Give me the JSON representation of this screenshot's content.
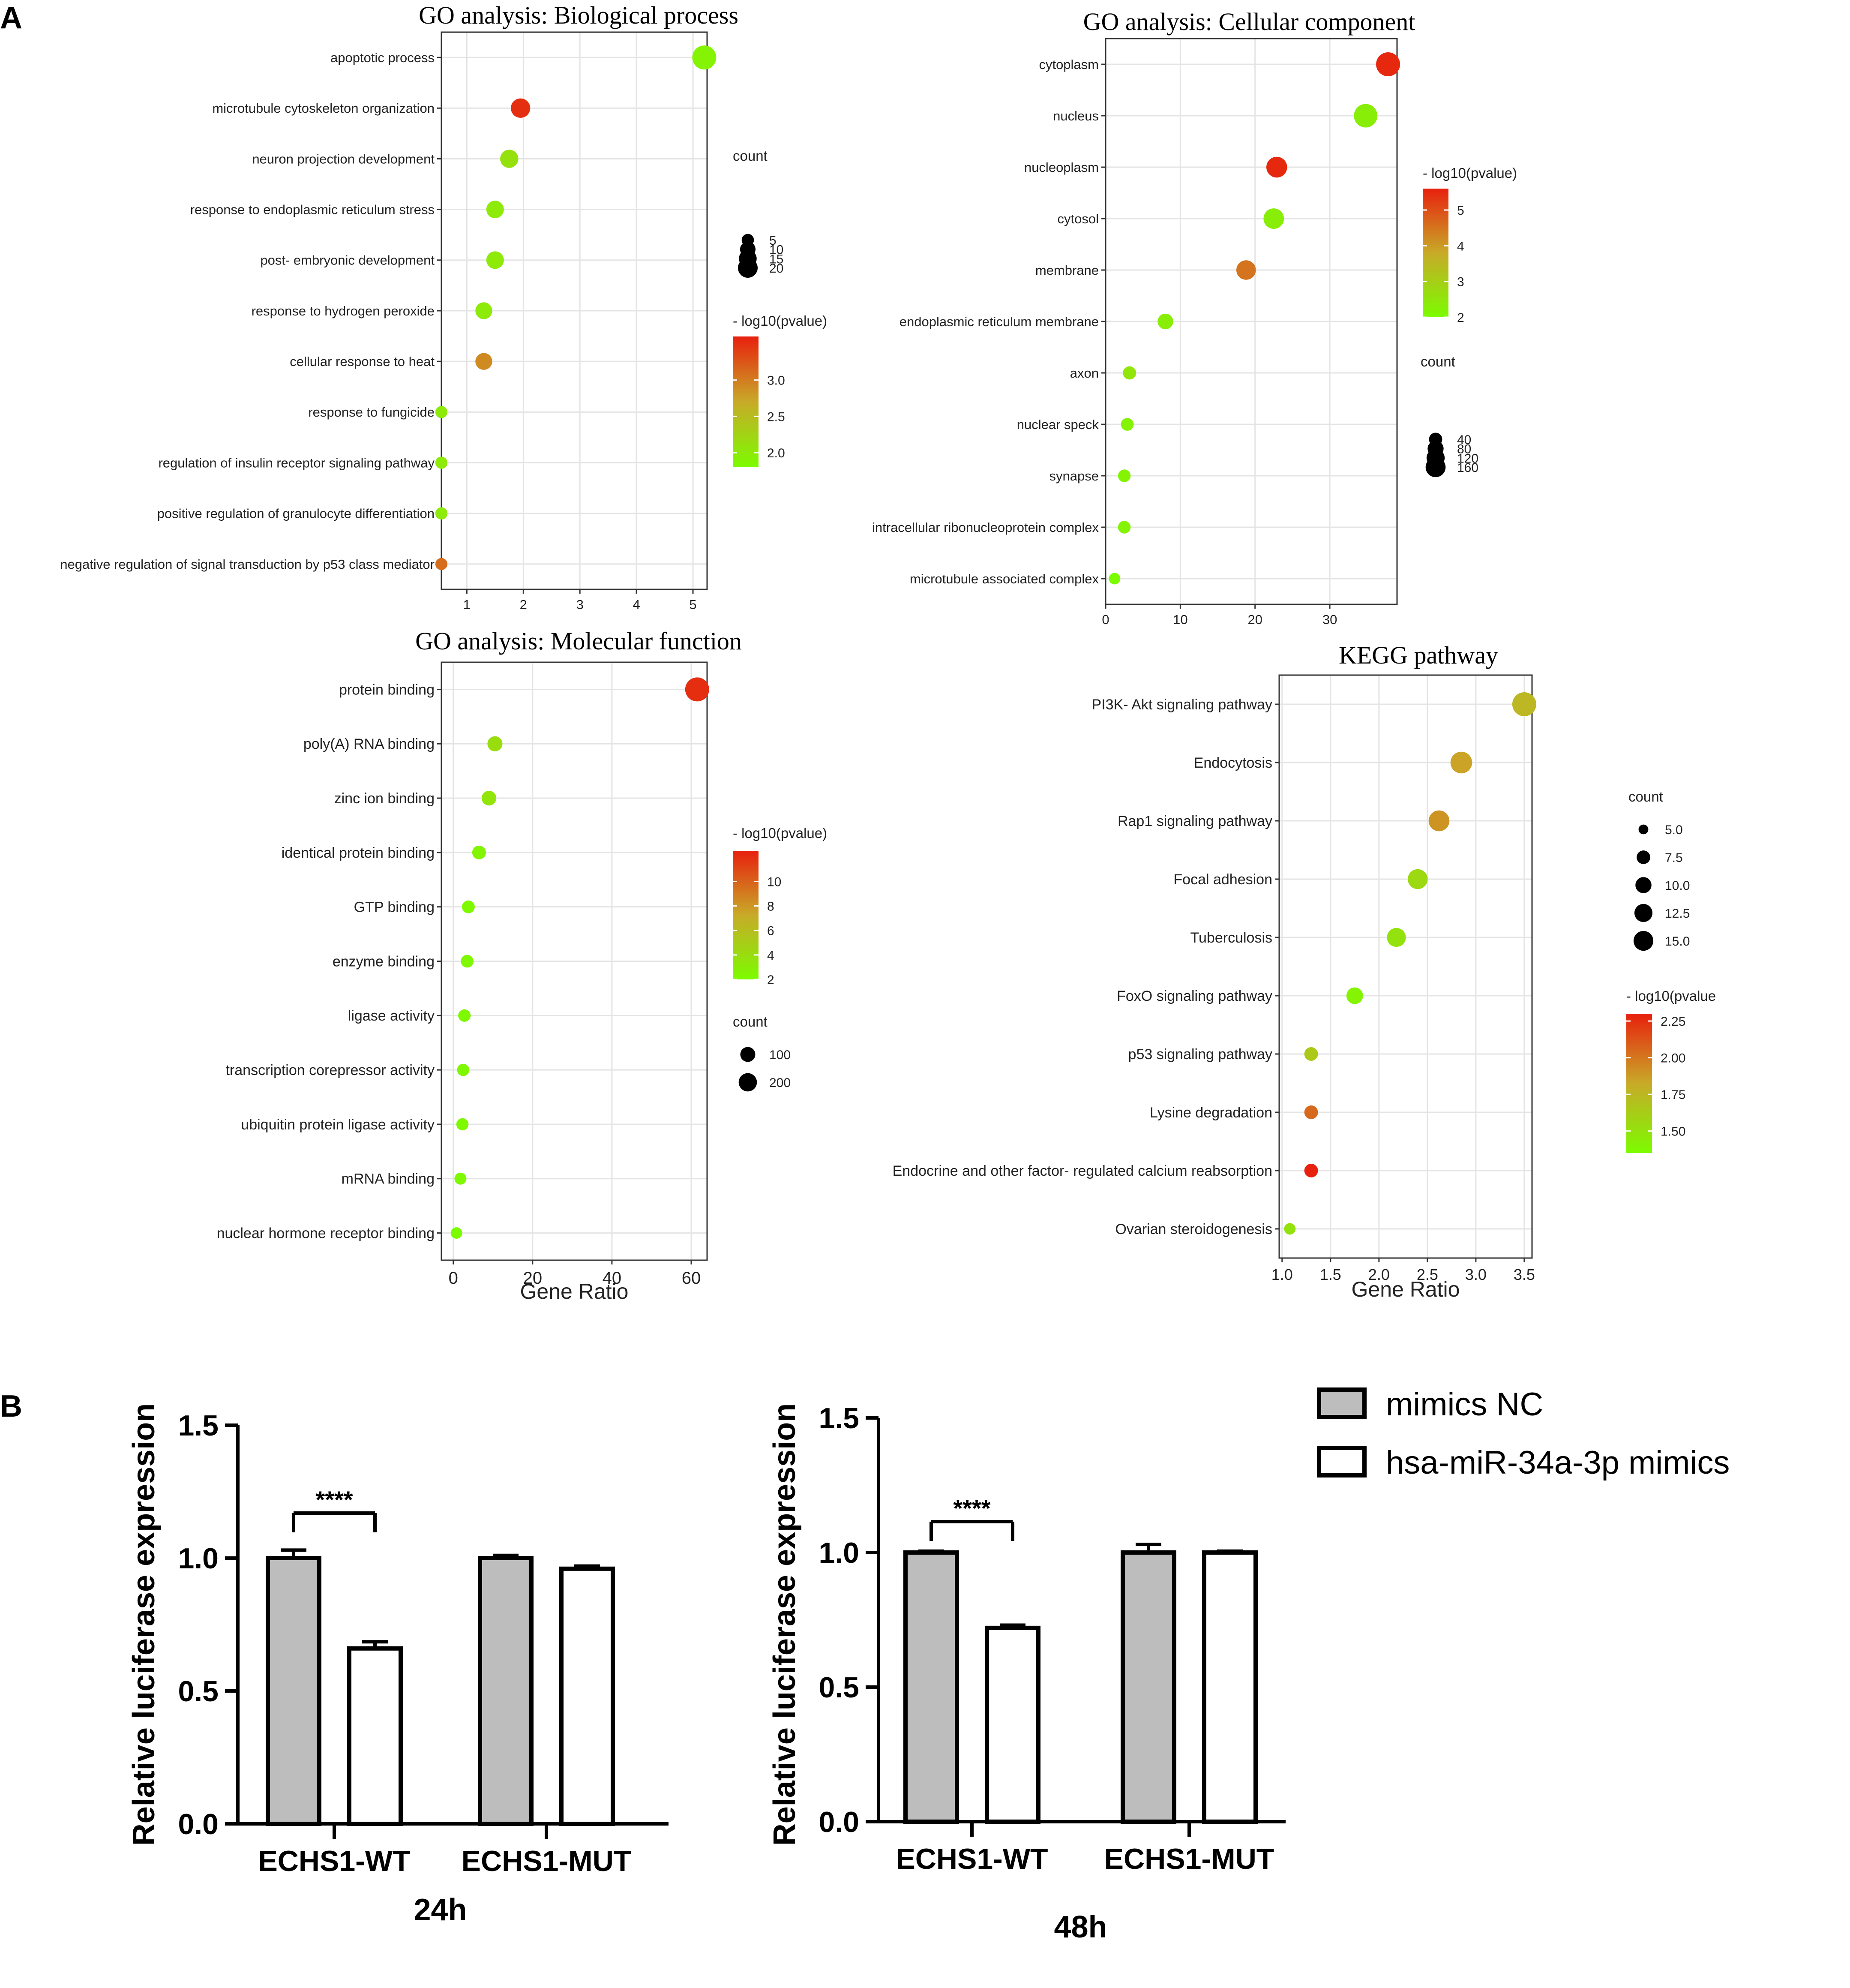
{
  "panel_labels": {
    "a": "A",
    "b": "B"
  },
  "colors": {
    "low": "#7CFC00",
    "mid": "#C8AA28",
    "high": "#E8200E",
    "grid": "#e4e4e4",
    "bar_gray": "#bdbdbd"
  },
  "chart_data": [
    {
      "id": "bp",
      "type": "scatter",
      "title": "GO analysis: Biological process",
      "xlabel": "",
      "xlim": [
        0.55,
        5.25
      ],
      "xticks": [
        1,
        2,
        3,
        4,
        5
      ],
      "terms": [
        "apoptotic process",
        "microtubule cytoskeleton organization",
        "neuron projection development",
        "response to endoplasmic reticulum stress",
        "post- embryonic development",
        "response to hydrogen peroxide",
        "cellular response to heat",
        "response to fungicide",
        "regulation of insulin receptor signaling pathway",
        "positive regulation of granulocyte differentiation",
        "negative regulation of signal transduction by p53 class mediator"
      ],
      "gene_ratio": [
        5.2,
        1.95,
        1.75,
        1.5,
        1.5,
        1.3,
        1.3,
        0.55,
        0.55,
        0.55,
        0.55
      ],
      "count": [
        22,
        12,
        10,
        9,
        9,
        8,
        8,
        3,
        3,
        3,
        3
      ],
      "neg_log10_p": [
        1.9,
        3.5,
        2.1,
        2.0,
        2.0,
        2.0,
        2.9,
        2.0,
        2.0,
        2.0,
        3.1
      ],
      "color_range": [
        1.8,
        3.6
      ],
      "size_legend": {
        "title": "count",
        "values": [
          5,
          10,
          15,
          20
        ],
        "labels": [
          "5",
          "10",
          "15",
          "20"
        ]
      },
      "color_legend": {
        "title": "- log10(pvalue)",
        "ticks": [
          3.0,
          2.5,
          2.0
        ],
        "labels": [
          "3.0",
          "2.5",
          "2.0"
        ]
      }
    },
    {
      "id": "cc",
      "type": "scatter",
      "title": "GO analysis: Cellular component",
      "xlabel": "",
      "xlim": [
        0,
        39
      ],
      "xticks": [
        0,
        10,
        20,
        30
      ],
      "terms": [
        "cytoplasm",
        "nucleus",
        "nucleoplasm",
        "cytosol",
        "membrane",
        "endoplasmic reticulum membrane",
        "axon",
        "nuclear speck",
        "synapse",
        "intracellular ribonucleoprotein complex",
        "microtubule associated complex"
      ],
      "gene_ratio": [
        37.8,
        34.8,
        22.9,
        22.5,
        18.8,
        8.0,
        3.2,
        2.9,
        2.5,
        2.5,
        1.2
      ],
      "count": [
        170,
        160,
        110,
        105,
        90,
        40,
        18,
        15,
        14,
        14,
        7
      ],
      "neg_log10_p": [
        5.5,
        2.3,
        5.5,
        2.3,
        4.5,
        2.3,
        2.5,
        2.2,
        2.2,
        2.2,
        2.0
      ],
      "color_range": [
        2,
        5.6
      ],
      "size_legend": {
        "title": "count",
        "values": [
          40,
          80,
          120,
          160
        ],
        "labels": [
          "40",
          "80",
          "120",
          "160"
        ]
      },
      "color_legend": {
        "title": "- log10(pvalue)",
        "ticks": [
          5,
          4,
          3,
          2
        ],
        "labels": [
          "5",
          "4",
          "3",
          "2"
        ]
      }
    },
    {
      "id": "mf",
      "type": "scatter",
      "title": "GO analysis: Molecular function",
      "xlabel": "Gene Ratio",
      "xlim": [
        -3,
        64
      ],
      "xticks": [
        0,
        20,
        40,
        60
      ],
      "terms": [
        "protein binding",
        "poly(A) RNA binding",
        "zinc ion binding",
        "identical protein binding",
        "GTP binding",
        "enzyme binding",
        "ligase activity",
        "transcription corepressor activity",
        "ubiquitin protein ligase activity",
        "mRNA binding",
        "nuclear hormone receptor binding"
      ],
      "gene_ratio": [
        61.5,
        10.5,
        9.0,
        6.5,
        3.8,
        3.5,
        2.8,
        2.5,
        2.3,
        1.8,
        0.8
      ],
      "count": [
        280,
        50,
        45,
        30,
        18,
        17,
        14,
        12,
        11,
        9,
        4
      ],
      "neg_log10_p": [
        12.0,
        4.0,
        3.5,
        2.5,
        2.2,
        2.2,
        2.2,
        2.2,
        2.2,
        2.2,
        2.0
      ],
      "color_range": [
        2,
        12.5
      ],
      "size_legend": {
        "title": "count",
        "values": [
          100,
          200
        ],
        "labels": [
          "100",
          "200"
        ]
      },
      "color_legend": {
        "title": "- log10(pvalue)",
        "ticks": [
          10,
          8,
          6,
          4,
          2
        ],
        "labels": [
          "10",
          "8",
          "6",
          "4",
          "2"
        ]
      }
    },
    {
      "id": "kegg",
      "type": "scatter",
      "title": "KEGG pathway",
      "xlabel": "Gene Ratio",
      "xlim": [
        0.97,
        3.58
      ],
      "xticks": [
        1.0,
        1.5,
        2.0,
        2.5,
        3.0,
        3.5
      ],
      "xtick_labels": [
        "1.0",
        "1.5",
        "2.0",
        "2.5",
        "3.0",
        "3.5"
      ],
      "terms": [
        "PI3K- Akt signaling pathway",
        "Endocytosis",
        "Rap1 signaling pathway",
        "Focal adhesion",
        "Tuberculosis",
        "FoxO signaling pathway",
        "p53 signaling pathway",
        "Lysine degradation",
        "Endocrine and other factor- regulated calcium reabsorption",
        "Ovarian steroidogenesis"
      ],
      "gene_ratio": [
        3.5,
        2.85,
        2.62,
        2.4,
        2.18,
        1.75,
        1.3,
        1.3,
        1.3,
        1.08
      ],
      "count": [
        16,
        13,
        12,
        11,
        10,
        8,
        6,
        6,
        6,
        5
      ],
      "neg_log10_p": [
        1.75,
        1.85,
        1.9,
        1.55,
        1.5,
        1.4,
        1.65,
        2.05,
        2.3,
        1.5
      ],
      "color_range": [
        1.35,
        2.3
      ],
      "size_legend": {
        "title": "count",
        "values": [
          5.0,
          7.5,
          10.0,
          12.5,
          15.0
        ],
        "labels": [
          "5.0",
          "7.5",
          "10.0",
          "12.5",
          "15.0"
        ]
      },
      "color_legend": {
        "title": "- log10(pvalue",
        "ticks": [
          2.25,
          2.0,
          1.75,
          1.5
        ],
        "labels": [
          "2.25",
          "2.00",
          "1.75",
          "1.50"
        ]
      }
    },
    {
      "id": "luc24",
      "type": "bar",
      "title": "24h",
      "ylabel": "Relative luciferase expression",
      "ylim": [
        0,
        1.5
      ],
      "yticks": [
        0,
        0.5,
        1.0,
        1.5
      ],
      "ytick_labels": [
        "0.0",
        "0.5",
        "1.0",
        "1.5"
      ],
      "categories": [
        "ECHS1-WT",
        "ECHS1-MUT"
      ],
      "series": [
        {
          "name": "mimics NC",
          "values": [
            1.0,
            1.0
          ],
          "errors": [
            0.03,
            0.01
          ]
        },
        {
          "name": "hsa-miR-34a-3p mimics",
          "values": [
            0.66,
            0.96
          ],
          "errors": [
            0.025,
            0.01
          ]
        }
      ],
      "significance": "****"
    },
    {
      "id": "luc48",
      "type": "bar",
      "title": "48h",
      "ylabel": "Relative luciferase expression",
      "ylim": [
        0,
        1.5
      ],
      "yticks": [
        0,
        0.5,
        1.0,
        1.5
      ],
      "ytick_labels": [
        "0.0",
        "0.5",
        "1.0",
        "1.5"
      ],
      "categories": [
        "ECHS1-WT",
        "ECHS1-MUT"
      ],
      "series": [
        {
          "name": "mimics NC",
          "values": [
            1.0,
            1.0
          ],
          "errors": [
            0.005,
            0.03
          ]
        },
        {
          "name": "hsa-miR-34a-3p mimics",
          "values": [
            0.72,
            1.0
          ],
          "errors": [
            0.01,
            0.005
          ]
        }
      ],
      "significance": "****"
    }
  ],
  "bar_legend": [
    "mimics NC",
    "hsa-miR-34a-3p mimics"
  ]
}
